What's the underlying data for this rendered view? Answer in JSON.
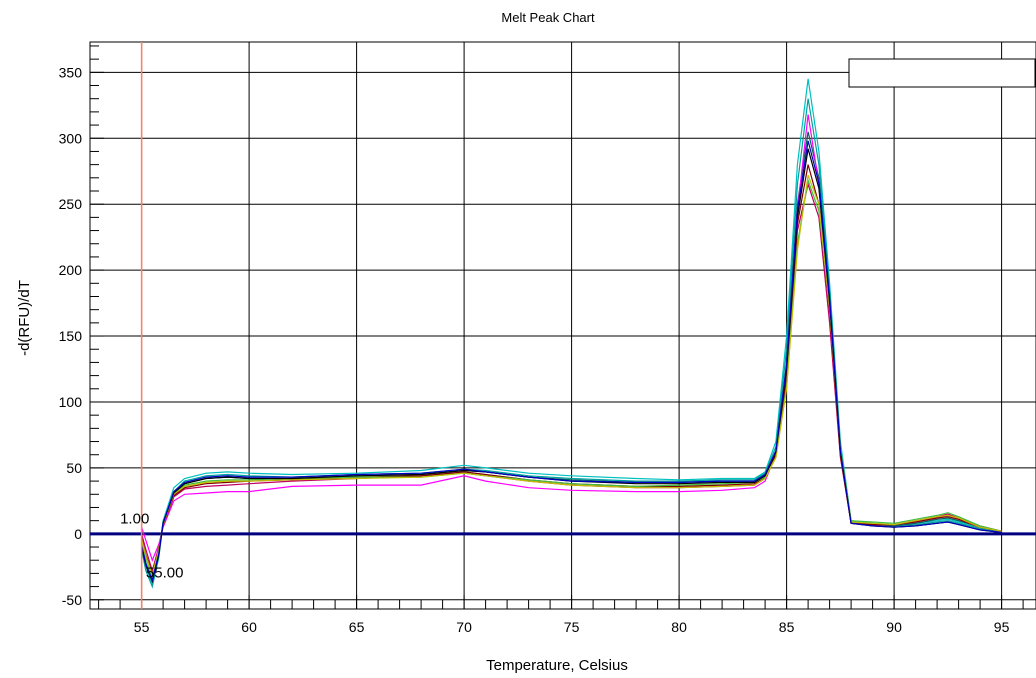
{
  "chart_data": {
    "type": "line",
    "title": "Melt Peak Chart",
    "xlabel": "Temperature, Celsius",
    "ylabel": "-d(RFU)/dT",
    "xlim": [
      52.6,
      96.6
    ],
    "ylim": [
      -57,
      373
    ],
    "xticks": [
      55,
      60,
      65,
      70,
      75,
      80,
      85,
      90,
      95
    ],
    "yticks": [
      -50,
      0,
      50,
      100,
      150,
      200,
      250,
      300,
      350
    ],
    "grid": true,
    "legend": "top-right (empty box)",
    "threshold": {
      "y": 0,
      "color": "#000080"
    },
    "cursor": {
      "x": 55,
      "color": "#ff8060"
    },
    "annotations": [
      {
        "text": "1.00",
        "x": 54.0,
        "y": 8
      },
      {
        "text": "55.00",
        "x": 55.2,
        "y": -33
      }
    ],
    "series": [
      {
        "color": "#00c0c0",
        "x": [
          55.0,
          55.2,
          55.5,
          55.8,
          56.0,
          56.5,
          57.0,
          58.0,
          59.0,
          60.0,
          62.0,
          65.0,
          68.0,
          70.0,
          71.0,
          73.0,
          75.0,
          78.0,
          80.0,
          82.0,
          83.5,
          84.0,
          84.5,
          85.0,
          85.5,
          86.0,
          86.5,
          87.0,
          87.5,
          88.0,
          89.0,
          90.0,
          91.0,
          92.0,
          92.5,
          93.0,
          94.0,
          95.0
        ],
        "y": [
          -10,
          -25,
          -38,
          -15,
          10,
          35,
          42,
          46,
          47,
          46,
          45,
          46,
          48,
          52,
          50,
          46,
          44,
          42,
          41,
          42,
          42,
          47,
          70,
          150,
          280,
          345,
          290,
          190,
          70,
          10,
          8,
          7,
          8,
          10,
          11,
          9,
          4,
          2
        ]
      },
      {
        "color": "#00a0a0",
        "x": [
          55.0,
          55.2,
          55.5,
          55.8,
          56.0,
          56.5,
          57.0,
          58.0,
          59.0,
          60.0,
          62.0,
          65.0,
          68.0,
          70.0,
          71.0,
          73.0,
          75.0,
          78.0,
          80.0,
          82.0,
          83.5,
          84.0,
          84.5,
          85.0,
          85.5,
          86.0,
          86.5,
          87.0,
          87.5,
          88.0,
          89.0,
          90.0,
          91.0,
          92.0,
          92.5,
          93.0,
          94.0,
          95.0
        ],
        "y": [
          -12,
          -28,
          -40,
          -18,
          8,
          32,
          40,
          44,
          45,
          44,
          43,
          45,
          46,
          49,
          48,
          44,
          42,
          40,
          40,
          41,
          41,
          46,
          66,
          140,
          265,
          330,
          280,
          185,
          66,
          9,
          7,
          6,
          7,
          9,
          10,
          8,
          4,
          2
        ]
      },
      {
        "color": "#006060",
        "x": [
          55.0,
          55.2,
          55.5,
          55.8,
          56.0,
          56.5,
          57.0,
          58.0,
          59.0,
          60.0,
          62.0,
          65.0,
          68.0,
          70.0,
          71.0,
          73.0,
          75.0,
          78.0,
          80.0,
          82.0,
          83.5,
          84.0,
          84.5,
          85.0,
          85.5,
          86.0,
          86.5,
          87.0,
          87.5,
          88.0,
          89.0,
          90.0,
          91.0,
          92.0,
          92.5,
          93.0,
          94.0,
          95.0
        ],
        "y": [
          -8,
          -22,
          -36,
          -14,
          9,
          30,
          38,
          42,
          43,
          42,
          42,
          44,
          45,
          48,
          47,
          43,
          41,
          39,
          39,
          40,
          40,
          44,
          62,
          130,
          250,
          305,
          270,
          180,
          64,
          9,
          7,
          6,
          8,
          11,
          12,
          10,
          5,
          2
        ]
      },
      {
        "color": "#ff00ff",
        "x": [
          55.0,
          55.2,
          55.5,
          55.8,
          56.0,
          56.5,
          57.0,
          58.0,
          59.0,
          60.0,
          62.0,
          65.0,
          68.0,
          70.0,
          71.0,
          73.0,
          75.0,
          78.0,
          80.0,
          82.0,
          83.5,
          84.0,
          84.5,
          85.0,
          85.5,
          86.0,
          86.5,
          87.0,
          87.5,
          88.0,
          89.0,
          90.0,
          91.0,
          92.0,
          92.5,
          93.0,
          94.0,
          95.0
        ],
        "y": [
          5,
          -5,
          -20,
          -8,
          5,
          25,
          30,
          31,
          32,
          32,
          36,
          37,
          37,
          44,
          40,
          35,
          33,
          32,
          32,
          33,
          35,
          40,
          60,
          125,
          245,
          318,
          265,
          170,
          60,
          8,
          7,
          7,
          9,
          12,
          14,
          11,
          5,
          2
        ]
      },
      {
        "color": "#c00060",
        "x": [
          55.0,
          55.2,
          55.5,
          55.8,
          56.0,
          56.5,
          57.0,
          58.0,
          59.0,
          60.0,
          62.0,
          65.0,
          68.0,
          70.0,
          71.0,
          73.0,
          75.0,
          78.0,
          80.0,
          82.0,
          83.5,
          84.0,
          84.5,
          85.0,
          85.5,
          86.0,
          86.5,
          87.0,
          87.5,
          88.0,
          89.0,
          90.0,
          91.0,
          92.0,
          92.5,
          93.0,
          94.0,
          95.0
        ],
        "y": [
          0,
          -12,
          -28,
          -10,
          6,
          28,
          34,
          36,
          37,
          38,
          40,
          42,
          44,
          46,
          44,
          40,
          37,
          35,
          35,
          36,
          37,
          42,
          60,
          118,
          230,
          265,
          240,
          160,
          58,
          8,
          7,
          7,
          10,
          13,
          15,
          12,
          6,
          2
        ]
      },
      {
        "color": "#800000",
        "x": [
          55.0,
          55.2,
          55.5,
          55.8,
          56.0,
          56.5,
          57.0,
          58.0,
          59.0,
          60.0,
          62.0,
          65.0,
          68.0,
          70.0,
          71.0,
          73.0,
          75.0,
          78.0,
          80.0,
          82.0,
          83.5,
          84.0,
          84.5,
          85.0,
          85.5,
          86.0,
          86.5,
          87.0,
          87.5,
          88.0,
          89.0,
          90.0,
          91.0,
          92.0,
          92.5,
          93.0,
          94.0,
          95.0
        ],
        "y": [
          -3,
          -16,
          -30,
          -12,
          7,
          29,
          35,
          38,
          39,
          40,
          41,
          43,
          44,
          47,
          45,
          41,
          38,
          36,
          36,
          37,
          38,
          43,
          60,
          120,
          235,
          280,
          250,
          170,
          60,
          8,
          7,
          7,
          9,
          12,
          13,
          11,
          5,
          2
        ]
      },
      {
        "color": "#40c040",
        "x": [
          55.0,
          55.2,
          55.5,
          55.8,
          56.0,
          56.5,
          57.0,
          58.0,
          59.0,
          60.0,
          62.0,
          65.0,
          68.0,
          70.0,
          71.0,
          73.0,
          75.0,
          78.0,
          80.0,
          82.0,
          83.5,
          84.0,
          84.5,
          85.0,
          85.5,
          86.0,
          86.5,
          87.0,
          87.5,
          88.0,
          89.0,
          90.0,
          91.0,
          92.0,
          92.5,
          93.0,
          94.0,
          95.0
        ],
        "y": [
          -5,
          -18,
          -33,
          -13,
          8,
          31,
          37,
          40,
          41,
          41,
          42,
          43,
          43,
          46,
          44,
          41,
          38,
          36,
          37,
          38,
          39,
          43,
          58,
          112,
          220,
          268,
          245,
          175,
          66,
          10,
          9,
          8,
          11,
          14,
          16,
          13,
          6,
          2
        ]
      },
      {
        "color": "#c0c000",
        "x": [
          55.0,
          55.2,
          55.5,
          55.8,
          56.0,
          56.5,
          57.0,
          58.0,
          59.0,
          60.0,
          62.0,
          65.0,
          68.0,
          70.0,
          71.0,
          73.0,
          75.0,
          78.0,
          80.0,
          82.0,
          83.5,
          84.0,
          84.5,
          85.0,
          85.5,
          86.0,
          86.5,
          87.0,
          87.5,
          88.0,
          89.0,
          90.0,
          91.0,
          92.0,
          92.5,
          93.0,
          94.0,
          95.0
        ],
        "y": [
          -4,
          -17,
          -31,
          -12,
          7,
          30,
          36,
          39,
          40,
          40,
          41,
          42,
          43,
          46,
          44,
          40,
          37,
          35,
          35,
          36,
          37,
          42,
          58,
          110,
          215,
          272,
          250,
          172,
          62,
          9,
          8,
          7,
          10,
          13,
          14,
          12,
          5,
          2
        ]
      },
      {
        "color": "#000000",
        "x": [
          55.0,
          55.2,
          55.5,
          55.8,
          56.0,
          56.5,
          57.0,
          58.0,
          59.0,
          60.0,
          62.0,
          65.0,
          68.0,
          70.0,
          71.0,
          73.0,
          75.0,
          78.0,
          80.0,
          82.0,
          83.5,
          84.0,
          84.5,
          85.0,
          85.5,
          86.0,
          86.5,
          87.0,
          87.5,
          88.0,
          89.0,
          90.0,
          91.0,
          92.0,
          92.5,
          93.0,
          94.0,
          95.0
        ],
        "y": [
          -10,
          -24,
          -36,
          -16,
          8,
          31,
          38,
          42,
          43,
          42,
          42,
          44,
          45,
          48,
          47,
          43,
          40,
          38,
          38,
          39,
          39,
          44,
          62,
          126,
          240,
          292,
          262,
          176,
          62,
          8,
          6,
          5,
          6,
          8,
          9,
          7,
          3,
          1
        ]
      },
      {
        "color": "#0000c0",
        "x": [
          55.0,
          55.2,
          55.5,
          55.8,
          56.0,
          56.5,
          57.0,
          58.0,
          59.0,
          60.0,
          62.0,
          65.0,
          68.0,
          70.0,
          71.0,
          73.0,
          75.0,
          78.0,
          80.0,
          82.0,
          83.5,
          84.0,
          84.5,
          85.0,
          85.5,
          86.0,
          86.5,
          87.0,
          87.5,
          88.0,
          89.0,
          90.0,
          91.0,
          92.0,
          92.5,
          93.0,
          94.0,
          95.0
        ],
        "y": [
          -9,
          -23,
          -35,
          -15,
          8,
          32,
          39,
          43,
          44,
          43,
          43,
          45,
          46,
          49,
          47,
          43,
          40,
          39,
          39,
          40,
          40,
          45,
          63,
          128,
          245,
          298,
          266,
          178,
          63,
          8,
          6,
          5,
          6,
          8,
          9,
          7,
          3,
          1
        ]
      }
    ]
  }
}
